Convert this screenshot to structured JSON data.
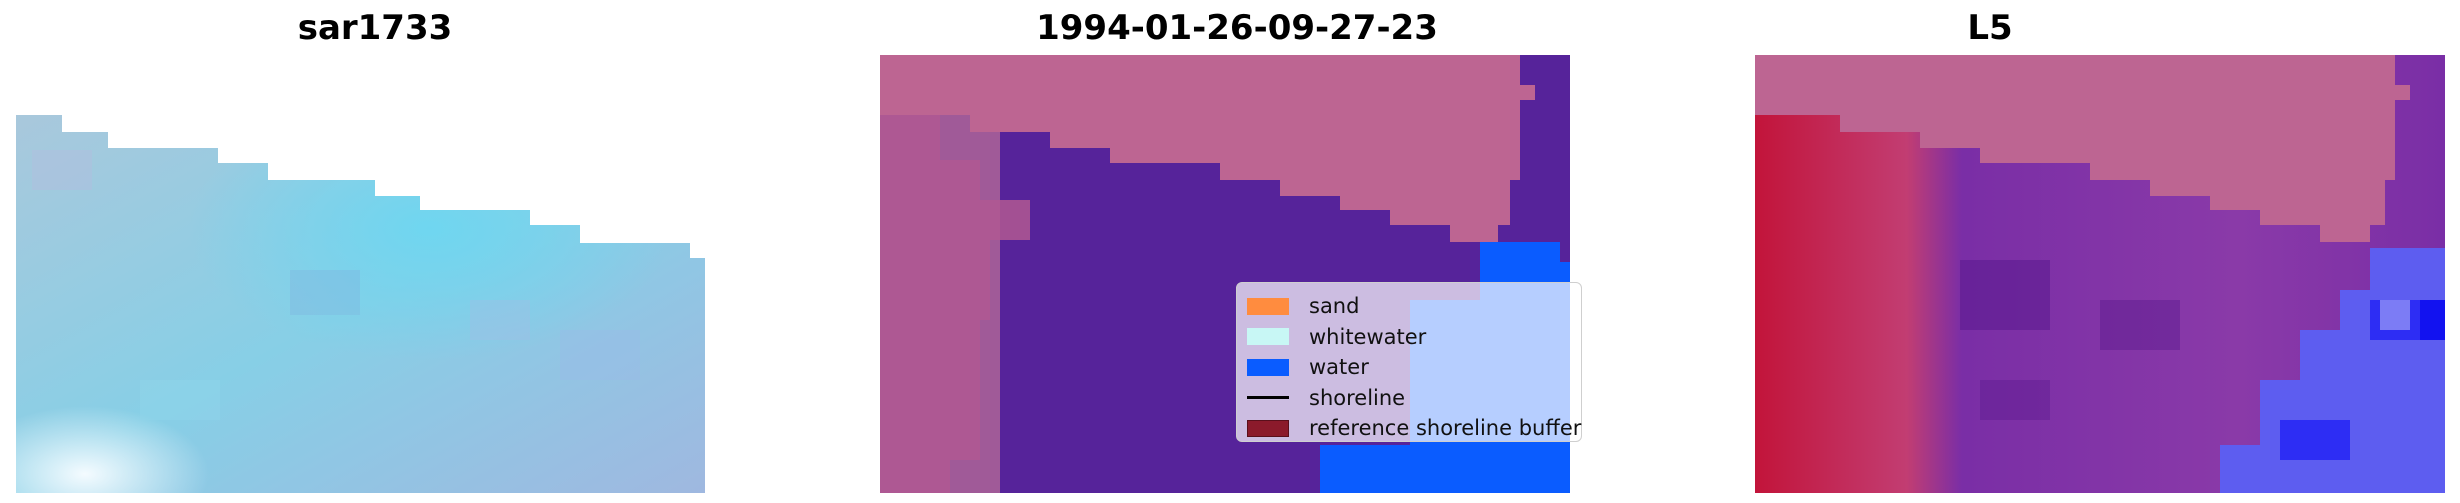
{
  "panels": {
    "left": {
      "title": "sar1733"
    },
    "middle": {
      "title": "1994-01-26-09-27-23"
    },
    "right": {
      "title": "L5"
    }
  },
  "legend": {
    "items": [
      {
        "label": "sand",
        "color": "#ff8c3f",
        "kind": "patch"
      },
      {
        "label": "whitewater",
        "color": "#c8f7f5",
        "kind": "patch"
      },
      {
        "label": "water",
        "color": "#0a5cff",
        "kind": "patch"
      },
      {
        "label": "shoreline",
        "color": "#000000",
        "kind": "line"
      },
      {
        "label": "reference shoreline buffer",
        "color": "#8b1a2b",
        "kind": "patch"
      }
    ]
  },
  "colors": {
    "buffer_overlay": "#bd6592",
    "land_purple": "#56239a",
    "water_blue": "#0a5cff",
    "rgb_tint": "#84cfe2",
    "index_red": "#c2143a",
    "index_purple": "#7a2ea6"
  }
}
